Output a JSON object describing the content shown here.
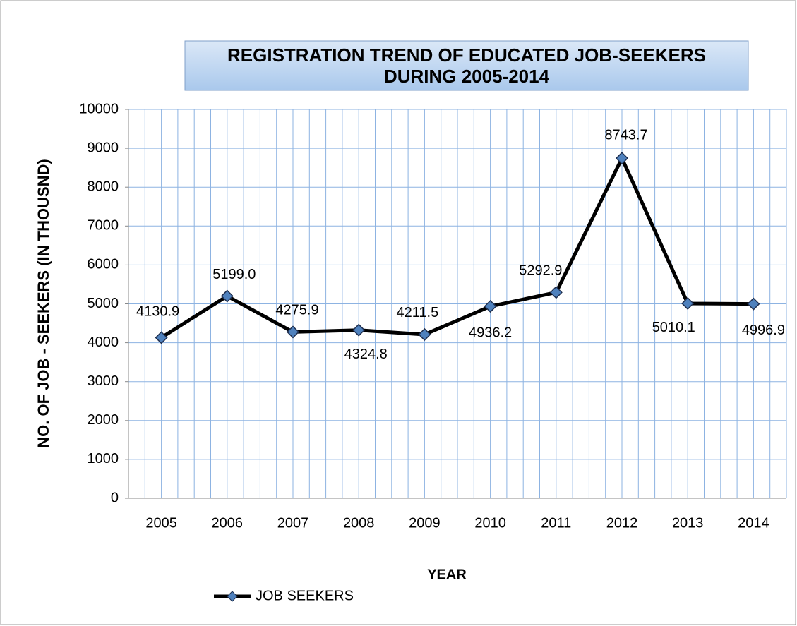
{
  "chart_data": {
    "type": "line",
    "title": [
      "REGISTRATION TREND OF EDUCATED JOB-SEEKERS",
      "DURING 2005-2014"
    ],
    "x_label": "YEAR",
    "y_label": "NO. OF JOB - SEEKERS (IN THOUSND)",
    "categories": [
      "2005",
      "2006",
      "2007",
      "2008",
      "2009",
      "2010",
      "2011",
      "2012",
      "2013",
      "2014"
    ],
    "series": [
      {
        "name": "JOB SEEKERS",
        "color": "#000000",
        "marker_color": "#4f81bd",
        "values": [
          4130.9,
          5199.0,
          4275.9,
          4324.8,
          4211.5,
          4936.2,
          5292.9,
          8743.7,
          5010.1,
          4996.9
        ],
        "value_labels": [
          "4130.9",
          "5199.0",
          "4275.9",
          "4324.8",
          "4211.5",
          "4936.2",
          "5292.9",
          "8743.7",
          "5010.1",
          "4996.9"
        ]
      }
    ],
    "ylim": [
      0,
      10000
    ],
    "yticks": [
      0,
      1000,
      2000,
      3000,
      4000,
      5000,
      6000,
      7000,
      8000,
      9000,
      10000
    ],
    "grid": true,
    "grid_color": "#8db3e2",
    "legend": "bottom"
  }
}
